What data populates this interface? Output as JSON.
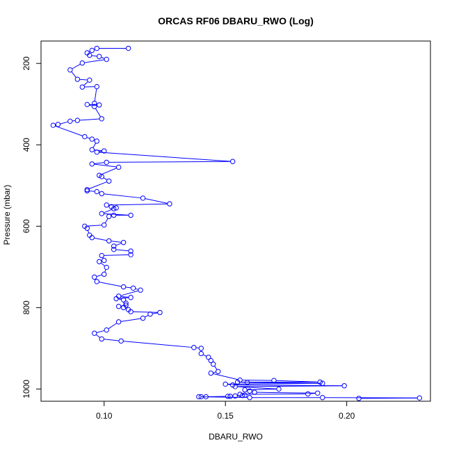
{
  "chart_data": {
    "type": "line",
    "title": "ORCAS RF06 DBARU_RWO (Log)",
    "xlabel": "DBARU_RWO",
    "ylabel": "Pressure (mbar)",
    "xlim": [
      0.074,
      0.2345
    ],
    "ylim": [
      1030,
      145
    ],
    "y_reversed": true,
    "x_ticks": [
      0.1,
      0.15,
      0.2
    ],
    "x_tick_labels": [
      "0.10",
      "0.15",
      "0.20"
    ],
    "y_ticks": [
      200,
      400,
      600,
      800,
      1000
    ],
    "y_tick_labels": [
      "200",
      "400",
      "600",
      "800",
      "1000"
    ],
    "grid": false,
    "marker": "open-circle",
    "color": "#0000ff",
    "series": [
      {
        "x": [
          0.11,
          0.097,
          0.095,
          0.093,
          0.094,
          0.098,
          0.101,
          0.091,
          0.086,
          0.089,
          0.094,
          0.091,
          0.097,
          0.096,
          0.098,
          0.093,
          0.096,
          0.099,
          0.089,
          0.086,
          0.081,
          0.079,
          0.092,
          0.095,
          0.097,
          0.095,
          0.1,
          0.097,
          0.153,
          0.101,
          0.095,
          0.106,
          0.098,
          0.099,
          0.102,
          0.093,
          0.093,
          0.097,
          0.099,
          0.116,
          0.127,
          0.101,
          0.103,
          0.105,
          0.104,
          0.099,
          0.111,
          0.104,
          0.102,
          0.1,
          0.092,
          0.093,
          0.094,
          0.095,
          0.102,
          0.108,
          0.104,
          0.104,
          0.111,
          0.111,
          0.099,
          0.1,
          0.098,
          0.101,
          0.1,
          0.096,
          0.097,
          0.108,
          0.112,
          0.115,
          0.106,
          0.111,
          0.105,
          0.108,
          0.109,
          0.109,
          0.106,
          0.108,
          0.11,
          0.111,
          0.123,
          0.119,
          0.116,
          0.106,
          0.101,
          0.096,
          0.099,
          0.107,
          0.137,
          0.14,
          0.14,
          0.143,
          0.144,
          0.145,
          0.147,
          0.144,
          0.156,
          0.17,
          0.189,
          0.155,
          0.159,
          0.19,
          0.15,
          0.153,
          0.199,
          0.154,
          0.172,
          0.158,
          0.16,
          0.162,
          0.188,
          0.184,
          0.156,
          0.158,
          0.157,
          0.154,
          0.152,
          0.151,
          0.142,
          0.14,
          0.139,
          0.16,
          0.19,
          0.23,
          0.205
        ],
        "y": [
          163,
          163,
          168,
          174,
          180,
          183,
          190,
          199,
          216,
          239,
          241,
          258,
          257,
          298,
          302,
          301,
          306,
          336,
          340,
          342,
          350,
          352,
          380,
          386,
          391,
          412,
          415,
          418,
          441,
          443,
          447,
          455,
          475,
          478,
          489,
          510,
          513,
          515,
          520,
          531,
          545,
          548,
          552,
          555,
          557,
          569,
          573,
          573,
          576,
          597,
          600,
          605,
          622,
          628,
          636,
          640,
          649,
          657,
          661,
          670,
          672,
          684,
          687,
          701,
          718,
          725,
          736,
          749,
          752,
          757,
          772,
          775,
          778,
          781,
          789,
          794,
          797,
          800,
          805,
          810,
          812,
          816,
          826,
          835,
          855,
          863,
          877,
          882,
          898,
          900,
          913,
          922,
          930,
          939,
          957,
          961,
          978,
          979,
          983,
          983,
          984,
          986,
          988,
          990,
          992,
          994,
          1000,
          1002,
          1005,
          1008,
          1010,
          1012,
          1013,
          1015,
          1016,
          1017,
          1018,
          1018,
          1019,
          1019,
          1019,
          1021,
          1021,
          1022,
          1023
        ]
      }
    ]
  }
}
